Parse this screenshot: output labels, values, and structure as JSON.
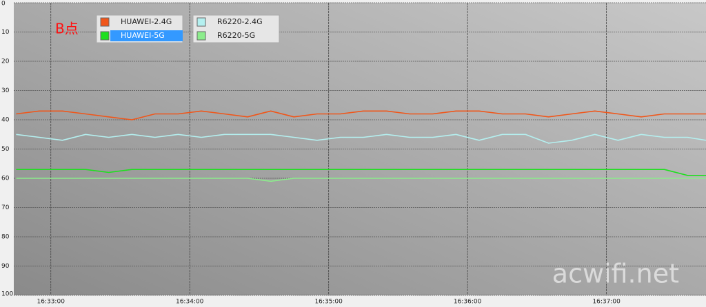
{
  "chart_data": {
    "type": "line",
    "annotation": "B点",
    "watermark": "acwifi.net",
    "x": [
      "16:32:45",
      "16:32:55",
      "16:33:05",
      "16:33:15",
      "16:33:25",
      "16:33:35",
      "16:33:45",
      "16:33:55",
      "16:34:05",
      "16:34:15",
      "16:34:25",
      "16:34:35",
      "16:34:45",
      "16:34:55",
      "16:35:05",
      "16:35:15",
      "16:35:25",
      "16:35:35",
      "16:35:45",
      "16:35:55",
      "16:36:05",
      "16:36:15",
      "16:36:25",
      "16:36:35",
      "16:36:45",
      "16:36:55",
      "16:37:05",
      "16:37:15",
      "16:37:25",
      "16:37:35",
      "16:37:43"
    ],
    "xlim": [
      "16:32:44",
      "16:37:43"
    ],
    "xticks": [
      "16:33:00",
      "16:34:00",
      "16:35:00",
      "16:36:00",
      "16:37:00"
    ],
    "ylim": [
      0,
      100
    ],
    "y_inverted": true,
    "yticks": [
      0,
      10,
      20,
      30,
      40,
      50,
      60,
      70,
      80,
      90,
      100
    ],
    "grid": true,
    "series": [
      {
        "name": "HUAWEI-2.4G",
        "color": "#f0561a",
        "values": [
          38,
          37,
          37,
          38,
          39,
          40,
          38,
          38,
          37,
          38,
          39,
          37,
          39,
          38,
          38,
          37,
          37,
          38,
          38,
          37,
          37,
          38,
          38,
          39,
          38,
          37,
          38,
          39,
          38,
          38,
          38
        ]
      },
      {
        "name": "HUAWEI-5G",
        "color": "#1ee01e",
        "values": [
          57,
          57,
          57,
          57,
          58,
          57,
          57,
          57,
          57,
          57,
          57,
          57,
          57,
          57,
          57,
          57,
          57,
          57,
          57,
          57,
          57,
          57,
          57,
          57,
          57,
          57,
          57,
          57,
          57,
          59,
          59
        ]
      },
      {
        "name": "R6220-2.4G",
        "color": "#b4f0f0",
        "values": [
          45,
          46,
          47,
          45,
          46,
          45,
          46,
          45,
          46,
          45,
          45,
          45,
          46,
          47,
          46,
          46,
          45,
          46,
          46,
          45,
          47,
          45,
          45,
          48,
          47,
          45,
          47,
          45,
          46,
          46,
          47
        ]
      },
      {
        "name": "R6220-5G",
        "color": "#8ced8c",
        "values": [
          60,
          60,
          60,
          60,
          60,
          60,
          60,
          60,
          60,
          60,
          60,
          61,
          60,
          60,
          60,
          60,
          60,
          60,
          60,
          60,
          60,
          60,
          60,
          60,
          60,
          60,
          60,
          60,
          60,
          60,
          60
        ]
      }
    ]
  }
}
